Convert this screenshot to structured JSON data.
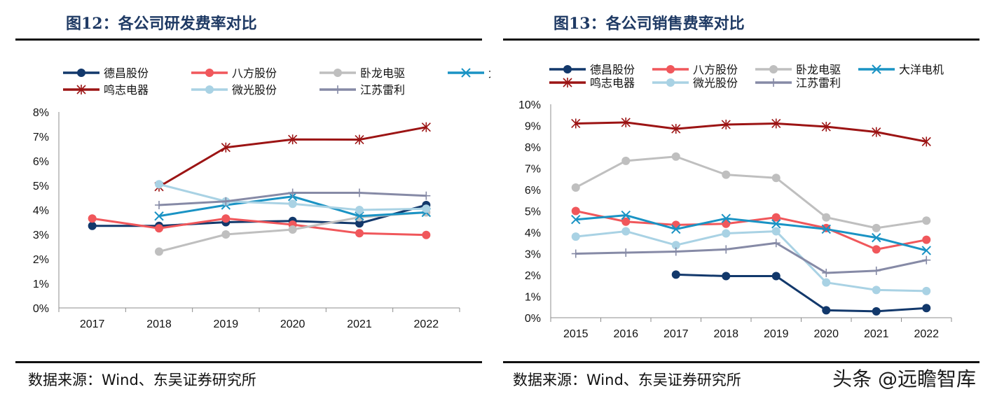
{
  "chart_data": [
    {
      "type": "line",
      "title": "图12：各公司研发费率对比",
      "source": "数据来源：Wind、东吴证券研究所",
      "categories": [
        "2017",
        "2018",
        "2019",
        "2020",
        "2021",
        "2022"
      ],
      "ylim": [
        0,
        8
      ],
      "yticks": [
        "0%",
        "1%",
        "2%",
        "3%",
        "4%",
        "5%",
        "6%",
        "7%",
        "8%"
      ],
      "legend_position": "top",
      "series": [
        {
          "name": "德昌股份",
          "color": "#12386b",
          "marker": "dot",
          "values": [
            3.35,
            3.35,
            3.5,
            3.55,
            3.45,
            4.2
          ]
        },
        {
          "name": "八方股份",
          "color": "#f0575b",
          "marker": "dot",
          "values": [
            3.65,
            3.25,
            3.65,
            3.4,
            3.05,
            2.98
          ]
        },
        {
          "name": "卧龙电驱",
          "color": "#bfbfbf",
          "marker": "dot",
          "values": [
            null,
            2.3,
            3.0,
            3.2,
            3.7,
            3.9
          ]
        },
        {
          "name": "大洋电机",
          "color": "#1a93c4",
          "marker": "x",
          "values": [
            null,
            3.75,
            4.2,
            4.55,
            3.75,
            3.9
          ]
        },
        {
          "name": "鸣志电器",
          "color": "#9c1414",
          "marker": "star",
          "values": [
            null,
            4.95,
            6.55,
            6.88,
            6.87,
            7.38
          ]
        },
        {
          "name": "微光股份",
          "color": "#a9d2e4",
          "marker": "dot",
          "values": [
            null,
            5.05,
            4.35,
            4.25,
            4.0,
            4.05
          ]
        },
        {
          "name": "江苏雷利",
          "color": "#868aa6",
          "marker": "plus",
          "values": [
            null,
            4.2,
            4.35,
            4.7,
            4.7,
            4.58
          ]
        }
      ]
    },
    {
      "type": "line",
      "title": "图13：各公司销售费率对比",
      "source": "数据来源：Wind、东吴证券研究所",
      "categories": [
        "2015",
        "2016",
        "2017",
        "2018",
        "2019",
        "2020",
        "2021",
        "2022"
      ],
      "ylim": [
        0,
        10
      ],
      "yticks": [
        "0%",
        "1%",
        "2%",
        "3%",
        "4%",
        "5%",
        "6%",
        "7%",
        "8%",
        "9%",
        "10%"
      ],
      "legend_position": "top",
      "series": [
        {
          "name": "德昌股份",
          "color": "#12386b",
          "marker": "dot",
          "values": [
            null,
            null,
            2.02,
            1.95,
            1.95,
            0.35,
            0.3,
            0.45
          ]
        },
        {
          "name": "八方股份",
          "color": "#f0575b",
          "marker": "dot",
          "values": [
            5.0,
            4.5,
            4.35,
            4.4,
            4.7,
            4.2,
            3.2,
            3.65
          ]
        },
        {
          "name": "卧龙电驱",
          "color": "#bfbfbf",
          "marker": "dot",
          "values": [
            6.1,
            7.35,
            7.55,
            6.7,
            6.55,
            4.7,
            4.2,
            4.55
          ]
        },
        {
          "name": "大洋电机",
          "color": "#1a93c4",
          "marker": "x",
          "values": [
            4.6,
            4.8,
            4.15,
            4.65,
            4.4,
            4.15,
            3.75,
            3.15
          ]
        },
        {
          "name": "鸣志电器",
          "color": "#9c1414",
          "marker": "star",
          "values": [
            9.1,
            9.15,
            8.85,
            9.05,
            9.1,
            8.95,
            8.7,
            8.25
          ]
        },
        {
          "name": "微光股份",
          "color": "#a9d2e4",
          "marker": "dot",
          "values": [
            3.8,
            4.05,
            3.4,
            3.95,
            4.05,
            1.65,
            1.3,
            1.25
          ]
        },
        {
          "name": "江苏雷利",
          "color": "#868aa6",
          "marker": "plus",
          "values": [
            3.0,
            3.05,
            3.1,
            3.2,
            3.5,
            2.1,
            2.2,
            2.7
          ]
        }
      ]
    }
  ],
  "watermark": "头条 @远瞻智库"
}
